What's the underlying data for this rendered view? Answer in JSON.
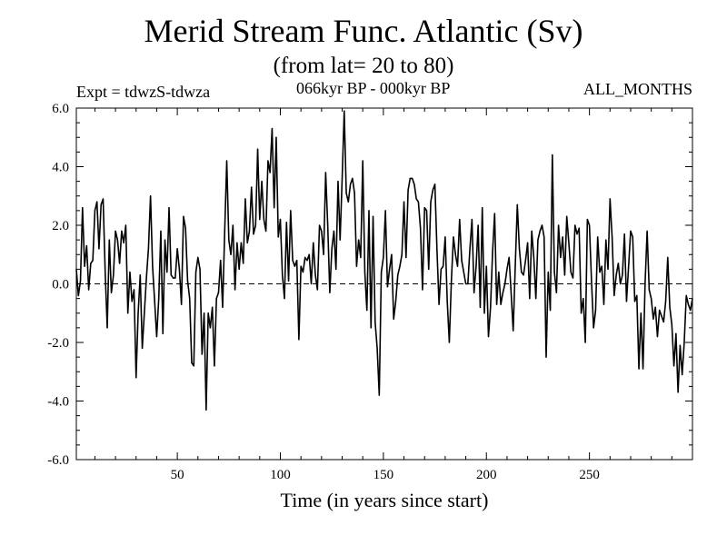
{
  "chart_data": {
    "type": "line",
    "title": "Merid Stream Func. Atlantic (Sv)",
    "subtitle": "(from lat= 20 to 80)",
    "annotations": {
      "experiment": "Expt = tdwzS-tdwza",
      "period": "066kyr BP - 000kyr BP",
      "months": "ALL_MONTHS"
    },
    "xlabel": "Time (in years since start)",
    "ylabel": "",
    "xlim": [
      1,
      300
    ],
    "ylim": [
      -6.0,
      6.0
    ],
    "x_ticks": [
      50,
      100,
      150,
      200,
      250
    ],
    "x_tick_labels": [
      "50",
      "100",
      "150",
      "200",
      "250"
    ],
    "y_ticks": [
      6.0,
      4.0,
      2.0,
      0.0,
      -2.0,
      -4.0,
      -6.0
    ],
    "y_tick_labels": [
      "6.0",
      "4.0",
      "2.0",
      "0.0",
      "-2.0",
      "-4.0",
      "-6.0"
    ],
    "zero_line": "dashed",
    "grid": false,
    "series": [
      {
        "color": "#000000",
        "x_start": 1,
        "x_step": 1,
        "values": [
          0.5,
          -0.4,
          0.1,
          2.6,
          0.6,
          1.3,
          -0.2,
          0.7,
          0.8,
          2.5,
          2.8,
          1.2,
          2.7,
          2.9,
          0.4,
          -1.5,
          1.5,
          -0.3,
          0.3,
          1.8,
          1.5,
          0.7,
          1.8,
          1.4,
          2.0,
          -1.0,
          0.4,
          -0.6,
          -0.2,
          -3.2,
          -1.0,
          0.3,
          -2.2,
          -1.0,
          0.2,
          1.2,
          3.0,
          0.6,
          -0.6,
          -1.8,
          -0.5,
          1.8,
          -1.7,
          1.5,
          0.4,
          2.6,
          0.3,
          0.2,
          0.2,
          1.2,
          0.5,
          -0.7,
          2.3,
          1.9,
          0.1,
          -0.5,
          -2.7,
          -2.8,
          0.4,
          0.9,
          0.5,
          -2.4,
          -1.0,
          -4.3,
          -1.0,
          -1.5,
          -0.8,
          -2.8,
          -0.5,
          -0.3,
          0.8,
          -0.8,
          1.8,
          4.2,
          1.5,
          1.0,
          2.0,
          -0.2,
          1.4,
          0.5,
          1.4,
          0.7,
          2.9,
          1.4,
          1.8,
          3.3,
          1.7,
          2.0,
          4.6,
          2.2,
          3.5,
          2.2,
          1.8,
          4.2,
          3.8,
          5.3,
          2.6,
          5.0,
          1.6,
          2.2,
          0.3,
          -0.5,
          2.1,
          0.1,
          2.5,
          0.8,
          0.6,
          0.8,
          -1.9,
          0.6,
          0.4,
          0.9,
          0.8,
          1.0,
          0.0,
          1.4,
          0.3,
          -0.2,
          2.0,
          1.8,
          1.0,
          3.8,
          2.0,
          -0.3,
          1.2,
          1.8,
          0.5,
          3.5,
          1.5,
          3.6,
          5.9,
          3.1,
          2.8,
          3.4,
          3.6,
          3.1,
          0.6,
          1.5,
          0.9,
          4.2,
          0.4,
          -0.9,
          2.5,
          -1.5,
          2.3,
          -1.3,
          -2.2,
          -3.8,
          0.4,
          0.9,
          2.5,
          -0.1,
          0.5,
          1.0,
          -1.2,
          -0.6,
          0.3,
          0.6,
          1.0,
          2.8,
          0.9,
          3.2,
          3.6,
          3.6,
          3.4,
          2.9,
          2.8,
          1.9,
          -0.2,
          2.6,
          2.5,
          0.5,
          2.8,
          3.2,
          3.4,
          1.2,
          -0.7,
          0.5,
          0.6,
          1.6,
          -0.6,
          -2.0,
          0.1,
          1.6,
          1.0,
          0.6,
          2.2,
          0.8,
          0.4,
          0.0,
          0.0,
          1.2,
          2.2,
          -0.3,
          0.6,
          2.0,
          -0.8,
          2.6,
          -1.0,
          0.6,
          -1.8,
          -0.8,
          1.1,
          2.4,
          -0.7,
          0.4,
          -0.7,
          -0.3,
          0.0,
          0.5,
          0.9,
          -0.3,
          -1.6,
          0.6,
          2.7,
          1.2,
          0.4,
          0.3,
          0.8,
          1.4,
          -0.5,
          1.8,
          0.9,
          -0.5,
          1.5,
          1.8,
          2.0,
          1.6,
          -2.5,
          0.4,
          -0.9,
          4.4,
          0.4,
          -0.3,
          2.0,
          0.9,
          1.6,
          0.3,
          2.3,
          1.4,
          0.4,
          0.2,
          2.0,
          1.7,
          1.9,
          -1.0,
          -0.5,
          -2.0,
          2.2,
          2.0,
          0.1,
          -1.5,
          -0.9,
          1.6,
          0.4,
          0.6,
          -0.7,
          1.5,
          0.5,
          2.9,
          1.6,
          -0.4,
          0.3,
          0.7,
          0.0,
          0.3,
          1.7,
          -0.6,
          0.6,
          1.8,
          1.6,
          -0.6,
          -0.4,
          -2.9,
          -1.0,
          -2.9,
          0.0,
          1.8,
          -0.2,
          -0.5,
          -1.2,
          -0.8,
          -1.8,
          -0.9,
          -1.1,
          -1.3,
          -0.6,
          0.9,
          -0.8,
          -1.4,
          -2.8,
          -1.7,
          -3.7,
          -2.1,
          -3.1,
          -2.0,
          -0.4,
          -0.7,
          -0.9,
          -0.5
        ]
      }
    ]
  }
}
